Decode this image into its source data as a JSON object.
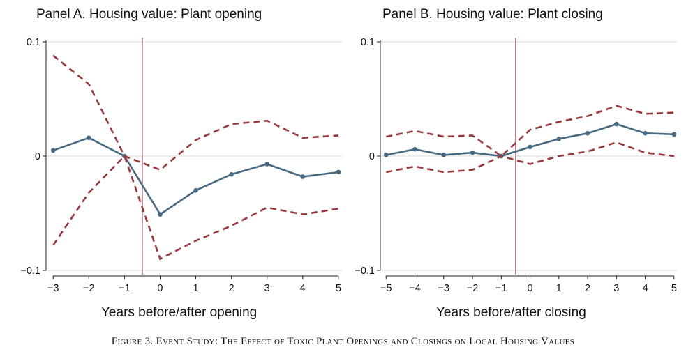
{
  "caption": "Figure 3. Event Study: The Effect of Toxic Plant Openings and Closings on Local Housing Values",
  "colors": {
    "estimate": "#476a82",
    "ci": "#963a3c",
    "event_line": "#8a1e3c",
    "grid": "#d9d9d9"
  },
  "chart_data": [
    {
      "type": "line",
      "title": "Panel A. Housing value: Plant opening",
      "xlabel": "Years before/after opening",
      "ylabel": "",
      "x": [
        -3,
        -2,
        -1,
        0,
        1,
        2,
        3,
        4,
        5
      ],
      "x_ticks": [
        "−3",
        "−2",
        "−1",
        "0",
        "1",
        "2",
        "3",
        "4",
        "5"
      ],
      "y_ticks": [
        "0.1",
        "0",
        "−0.1"
      ],
      "y_tick_values": [
        0.1,
        0,
        -0.1
      ],
      "xlim": [
        -3.2,
        5.1
      ],
      "ylim": [
        -0.1,
        0.1
      ],
      "event_line_x": -0.5,
      "grid": true,
      "series": [
        {
          "role": "estimate",
          "style": "solid-markers",
          "values": [
            0.005,
            0.016,
            0.0,
            -0.051,
            -0.03,
            -0.016,
            -0.007,
            -0.018,
            -0.014
          ]
        },
        {
          "role": "upper_ci",
          "style": "dashed",
          "values": [
            0.088,
            0.063,
            0.0,
            -0.012,
            0.014,
            0.028,
            0.031,
            0.016,
            0.018
          ]
        },
        {
          "role": "lower_ci",
          "style": "dashed",
          "values": [
            -0.078,
            -0.032,
            0.0,
            -0.09,
            -0.074,
            -0.061,
            -0.045,
            -0.051,
            -0.046
          ]
        }
      ]
    },
    {
      "type": "line",
      "title": "Panel B. Housing value: Plant closing",
      "xlabel": "Years before/after closing",
      "ylabel": "",
      "x": [
        -5,
        -4,
        -3,
        -2,
        -1,
        0,
        1,
        2,
        3,
        4,
        5
      ],
      "x_ticks": [
        "−5",
        "−4",
        "−3",
        "−2",
        "−1",
        "0",
        "1",
        "2",
        "3",
        "4",
        "5"
      ],
      "y_ticks": [
        "0.1",
        "0",
        "−0.1"
      ],
      "y_tick_values": [
        0.1,
        0,
        -0.1
      ],
      "xlim": [
        -5.2,
        5.1
      ],
      "ylim": [
        -0.1,
        0.1
      ],
      "event_line_x": -0.5,
      "grid": true,
      "series": [
        {
          "role": "estimate",
          "style": "solid-markers",
          "values": [
            0.001,
            0.006,
            0.001,
            0.003,
            0.0,
            0.008,
            0.015,
            0.02,
            0.028,
            0.02,
            0.019
          ]
        },
        {
          "role": "upper_ci",
          "style": "dashed",
          "values": [
            0.017,
            0.022,
            0.017,
            0.018,
            0.0,
            0.023,
            0.03,
            0.035,
            0.044,
            0.037,
            0.038
          ]
        },
        {
          "role": "lower_ci",
          "style": "dashed",
          "values": [
            -0.014,
            -0.009,
            -0.014,
            -0.012,
            0.0,
            -0.007,
            0.0,
            0.004,
            0.012,
            0.003,
            0.0
          ]
        }
      ]
    }
  ]
}
